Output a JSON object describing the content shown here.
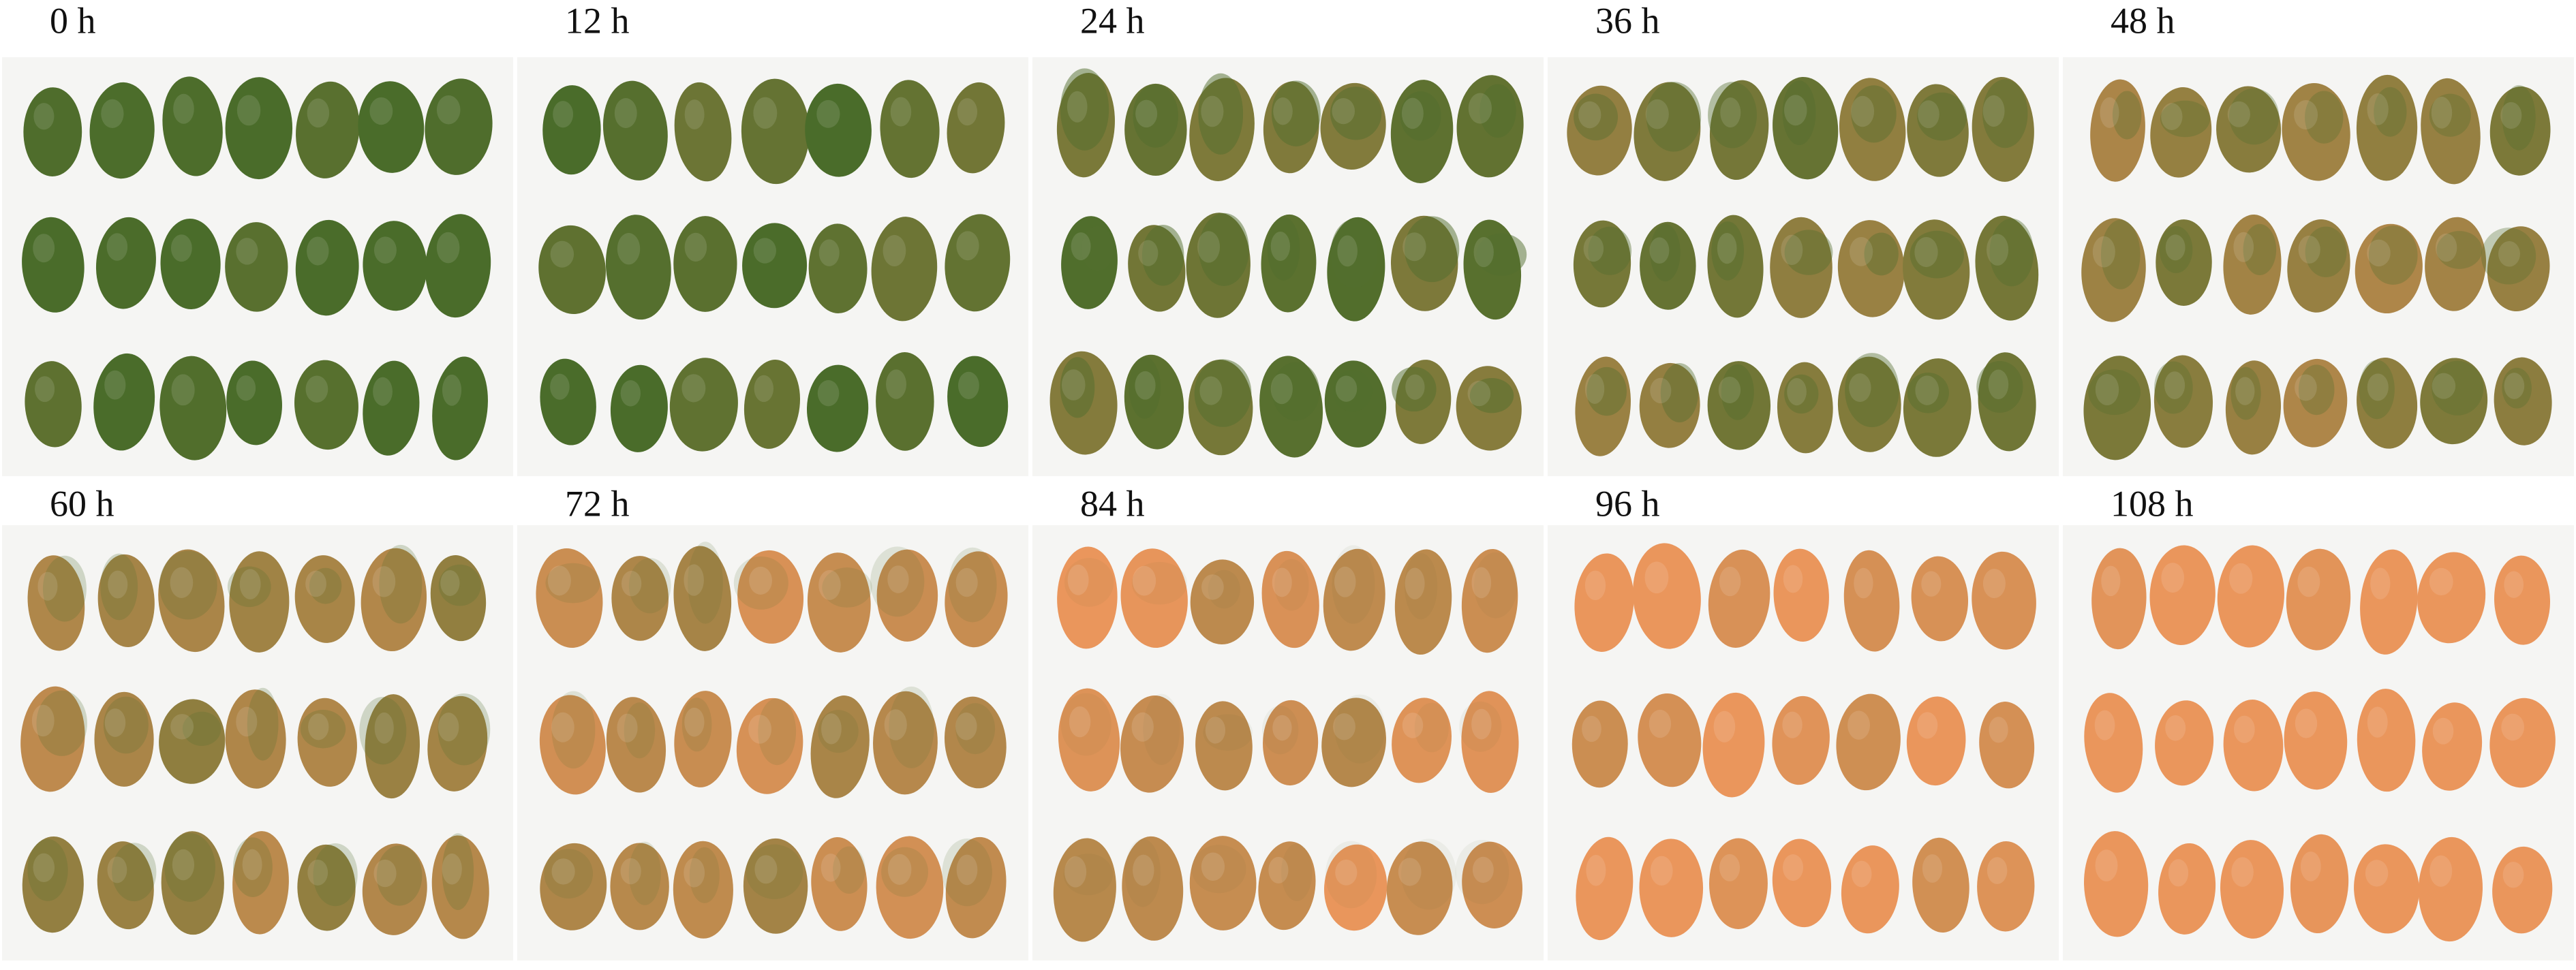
{
  "panels": [
    {
      "label": "0 h"
    },
    {
      "label": "12 h"
    },
    {
      "label": "24 h"
    },
    {
      "label": "36 h"
    },
    {
      "label": "48 h"
    },
    {
      "label": "60 h"
    },
    {
      "label": "72 h"
    },
    {
      "label": "84 h"
    },
    {
      "label": "96 h"
    },
    {
      "label": "108 h"
    }
  ]
}
